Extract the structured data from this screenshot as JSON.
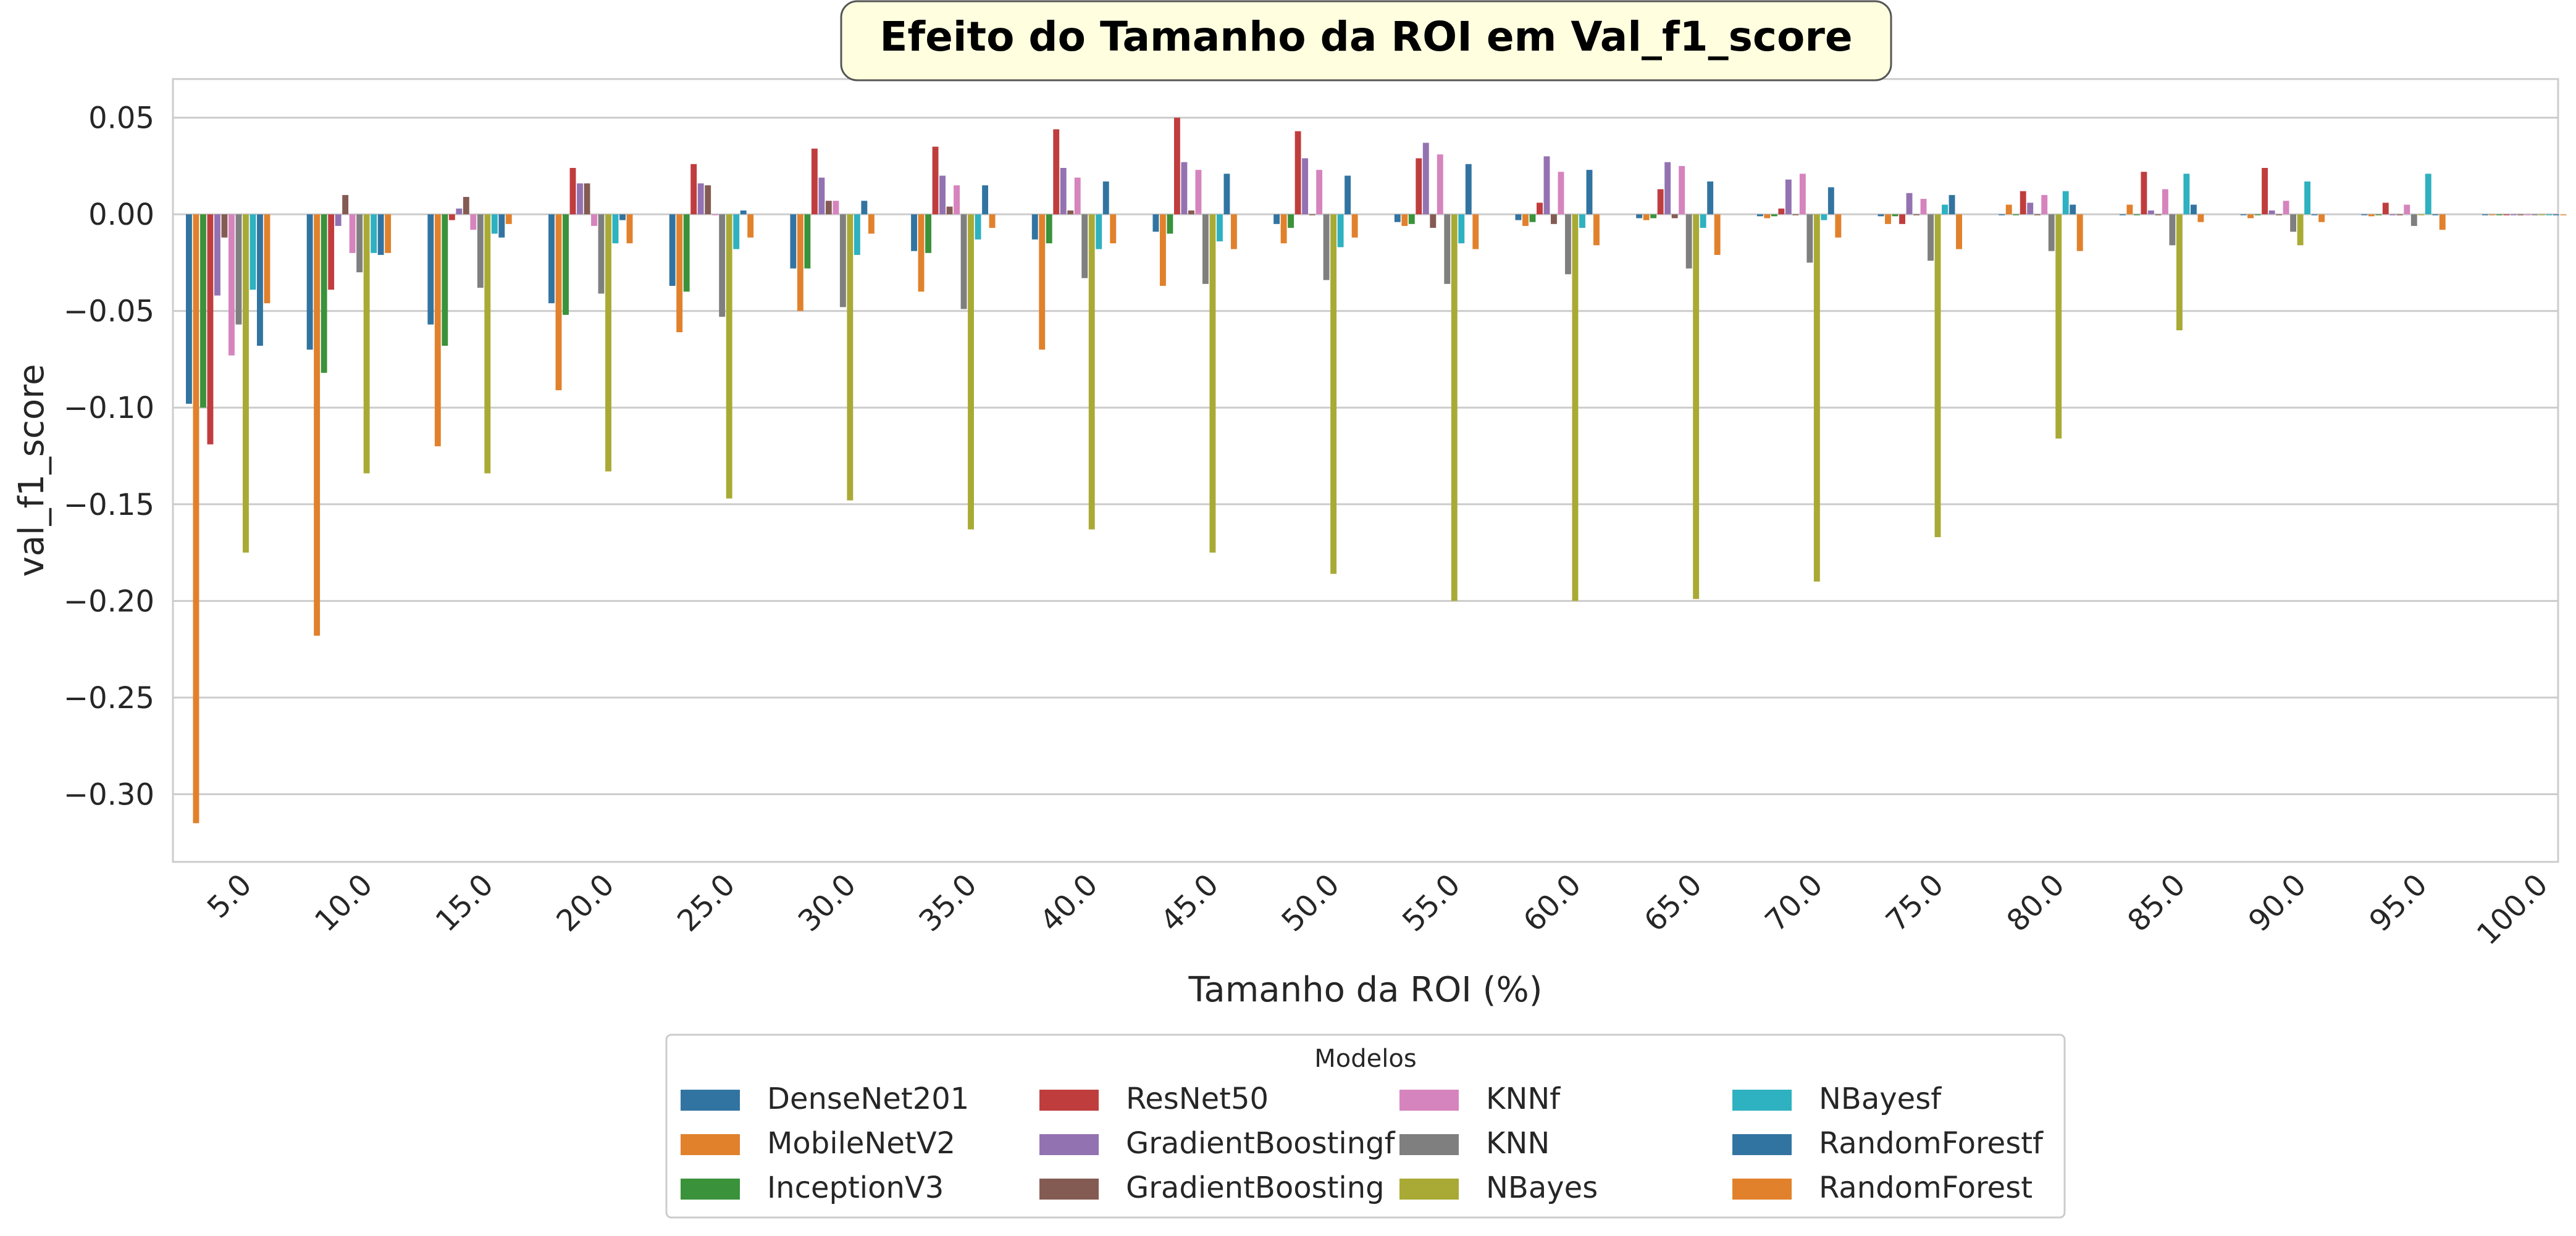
{
  "chart_data": {
    "type": "bar",
    "title": "Efeito do Tamanho da ROI em  Val_f1_score",
    "xlabel": "Tamanho da ROI (%)",
    "ylabel": "val_f1_score",
    "ylim": [
      -0.335,
      0.07
    ],
    "yticks": [
      0.05,
      0.0,
      -0.05,
      -0.1,
      -0.15,
      -0.2,
      -0.25,
      -0.3
    ],
    "ytick_labels": [
      "0.05",
      "0.00",
      "−0.05",
      "−0.10",
      "−0.15",
      "−0.20",
      "−0.25",
      "−0.30"
    ],
    "categories": [
      "5.0",
      "10.0",
      "15.0",
      "20.0",
      "25.0",
      "30.0",
      "35.0",
      "40.0",
      "45.0",
      "50.0",
      "55.0",
      "60.0",
      "65.0",
      "70.0",
      "75.0",
      "80.0",
      "85.0",
      "90.0",
      "95.0",
      "100.0"
    ],
    "grid": true,
    "legend": {
      "title": "Modelos",
      "placement": "bottom-center",
      "columns": 4
    },
    "series": [
      {
        "name": "DenseNet201",
        "color": "#3274a1",
        "values": [
          -0.098,
          -0.07,
          -0.057,
          -0.046,
          -0.037,
          -0.028,
          -0.019,
          -0.013,
          -0.009,
          -0.005,
          -0.004,
          -0.003,
          -0.002,
          -0.001,
          -0.001,
          0.0,
          0.0,
          0.0,
          0.0,
          0.0
        ]
      },
      {
        "name": "MobileNetV2",
        "color": "#e1812c",
        "values": [
          -0.315,
          -0.218,
          -0.12,
          -0.091,
          -0.061,
          -0.05,
          -0.04,
          -0.07,
          -0.037,
          -0.015,
          -0.006,
          -0.006,
          -0.003,
          -0.002,
          -0.005,
          0.005,
          0.005,
          -0.002,
          -0.001,
          0.0
        ]
      },
      {
        "name": "InceptionV3",
        "color": "#3a923a",
        "values": [
          -0.1,
          -0.082,
          -0.068,
          -0.052,
          -0.04,
          -0.028,
          -0.02,
          -0.015,
          -0.01,
          -0.007,
          -0.005,
          -0.004,
          -0.002,
          -0.001,
          -0.001,
          0.0,
          0.0,
          0.0,
          0.0,
          0.0
        ]
      },
      {
        "name": "ResNet50",
        "color": "#c03d3e",
        "values": [
          -0.119,
          -0.039,
          -0.003,
          0.024,
          0.026,
          0.034,
          0.035,
          0.044,
          0.05,
          0.043,
          0.029,
          0.006,
          0.013,
          0.003,
          -0.005,
          0.012,
          0.022,
          0.024,
          0.006,
          0.0
        ]
      },
      {
        "name": "GradientBoostingf",
        "color": "#9372b2",
        "values": [
          -0.042,
          -0.006,
          0.003,
          0.016,
          0.016,
          0.019,
          0.02,
          0.024,
          0.027,
          0.029,
          0.037,
          0.03,
          0.027,
          0.018,
          0.011,
          0.006,
          0.002,
          0.002,
          0.0,
          0.0
        ]
      },
      {
        "name": "GradientBoosting",
        "color": "#845b53",
        "values": [
          -0.012,
          0.01,
          0.009,
          0.016,
          0.015,
          0.007,
          0.004,
          0.002,
          0.002,
          0.0,
          -0.007,
          -0.005,
          -0.002,
          0.0,
          0.0,
          0.0,
          0.0,
          0.0,
          0.0,
          0.0
        ]
      },
      {
        "name": "KNNf",
        "color": "#d684bd",
        "values": [
          -0.073,
          -0.02,
          -0.008,
          -0.006,
          0.0,
          0.007,
          0.015,
          0.019,
          0.023,
          0.023,
          0.031,
          0.022,
          0.025,
          0.021,
          0.008,
          0.01,
          0.013,
          0.007,
          0.005,
          0.0
        ]
      },
      {
        "name": "KNN",
        "color": "#7f7f7f",
        "values": [
          -0.057,
          -0.03,
          -0.038,
          -0.041,
          -0.053,
          -0.048,
          -0.049,
          -0.033,
          -0.036,
          -0.034,
          -0.036,
          -0.031,
          -0.028,
          -0.025,
          -0.024,
          -0.019,
          -0.016,
          -0.009,
          -0.006,
          0.0
        ]
      },
      {
        "name": "NBayes",
        "color": "#a9aa35",
        "values": [
          -0.175,
          -0.134,
          -0.134,
          -0.133,
          -0.147,
          -0.148,
          -0.163,
          -0.163,
          -0.175,
          -0.186,
          -0.2,
          -0.2,
          -0.199,
          -0.19,
          -0.167,
          -0.116,
          -0.06,
          -0.016,
          0.0,
          0.0
        ]
      },
      {
        "name": "NBayesf",
        "color": "#2eb1c0",
        "values": [
          -0.039,
          -0.02,
          -0.01,
          -0.015,
          -0.018,
          -0.021,
          -0.013,
          -0.018,
          -0.014,
          -0.017,
          -0.015,
          -0.007,
          -0.007,
          -0.003,
          0.005,
          0.012,
          0.021,
          0.017,
          0.021,
          0.0
        ]
      },
      {
        "name": "RandomForestf",
        "color": "#3274a1",
        "values": [
          -0.068,
          -0.021,
          -0.012,
          -0.003,
          0.002,
          0.007,
          0.015,
          0.017,
          0.021,
          0.02,
          0.026,
          0.023,
          0.017,
          0.014,
          0.01,
          0.005,
          0.005,
          0.0,
          0.0,
          0.0
        ]
      },
      {
        "name": "RandomForest",
        "color": "#e1812c",
        "values": [
          -0.046,
          -0.02,
          -0.005,
          -0.015,
          -0.012,
          -0.01,
          -0.007,
          -0.015,
          -0.018,
          -0.012,
          -0.018,
          -0.016,
          -0.021,
          -0.012,
          -0.018,
          -0.019,
          -0.004,
          -0.004,
          -0.008,
          0.0
        ]
      }
    ]
  }
}
